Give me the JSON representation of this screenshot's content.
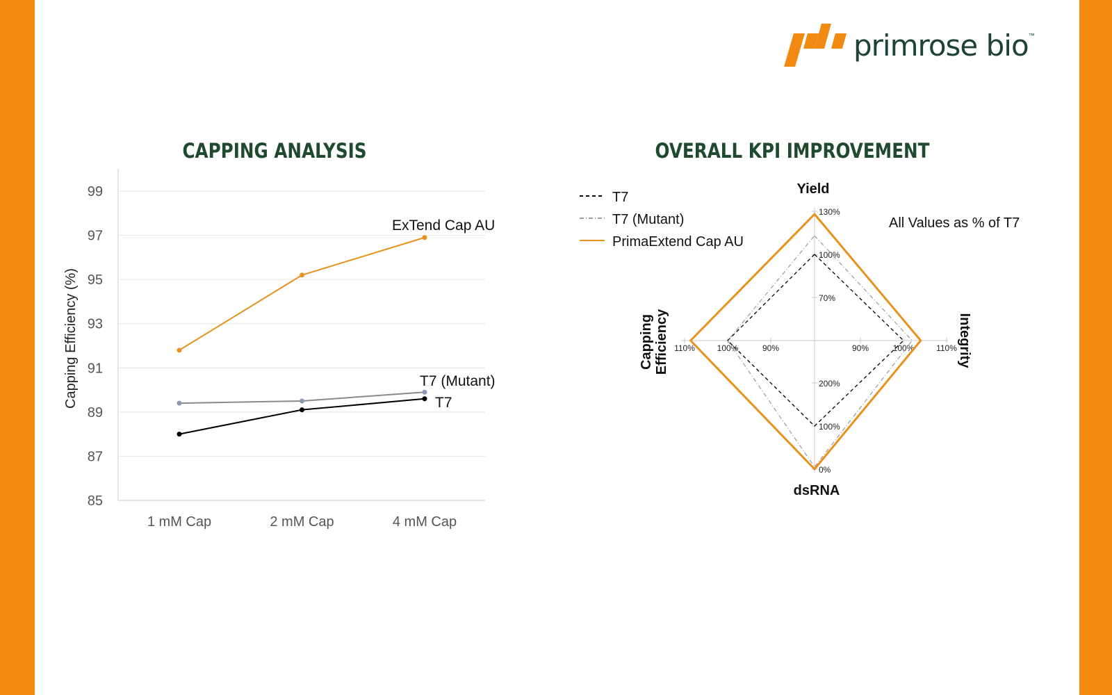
{
  "brand": {
    "name": "primrose bio",
    "trademark": "™",
    "accent": "#f28a12",
    "dark": "#1f4236"
  },
  "chart_data": [
    {
      "type": "line",
      "title": "CAPPING ANALYSIS",
      "xlabel": "",
      "ylabel": "Capping Efficiency (%)",
      "categories": [
        "1 mM Cap",
        "2 mM Cap",
        "4 mM Cap"
      ],
      "ylim": [
        85,
        99
      ],
      "yticks": [
        85,
        87,
        89,
        91,
        93,
        95,
        97,
        99
      ],
      "grid": true,
      "series": [
        {
          "name": "ExTend Cap AU",
          "color": "#e8921e",
          "values": [
            91.8,
            95.2,
            96.9
          ]
        },
        {
          "name": "T7 (Mutant)",
          "color": "#8a8a8a",
          "values": [
            89.4,
            89.5,
            89.9
          ]
        },
        {
          "name": "T7",
          "color": "#000000",
          "values": [
            88.0,
            89.1,
            89.6
          ]
        }
      ]
    },
    {
      "type": "radar",
      "title": "OVERALL KPI IMPROVEMENT",
      "annotation": "All Values as % of T7",
      "legend_position": "top-left",
      "axes": [
        {
          "name": "Yield",
          "ticks": [
            "70%",
            "100%",
            "130%"
          ],
          "tick_values": [
            70,
            100,
            130
          ]
        },
        {
          "name": "Integrity",
          "ticks": [
            "90%",
            "100%",
            "110%"
          ],
          "tick_values": [
            90,
            100,
            110
          ]
        },
        {
          "name": "dsRNA",
          "ticks": [
            "200%",
            "100%",
            "0%"
          ],
          "tick_values": [
            200,
            100,
            0
          ]
        },
        {
          "name": "Capping Efficiency",
          "ticks": [
            "90%",
            "100%",
            "110%"
          ],
          "tick_values": [
            90,
            100,
            110
          ]
        }
      ],
      "series": [
        {
          "name": "T7",
          "color": "#000000",
          "style": "dashed",
          "values": [
            100,
            100,
            100,
            100
          ]
        },
        {
          "name": "T7 (Mutant)",
          "color": "#a0a0a0",
          "style": "dash-dot",
          "values": [
            113,
            102,
            5,
            100
          ]
        },
        {
          "name": "PrimaExtend Cap AU",
          "color": "#e8921e",
          "style": "solid",
          "values": [
            128,
            104,
            0,
            108.6
          ]
        }
      ]
    }
  ]
}
